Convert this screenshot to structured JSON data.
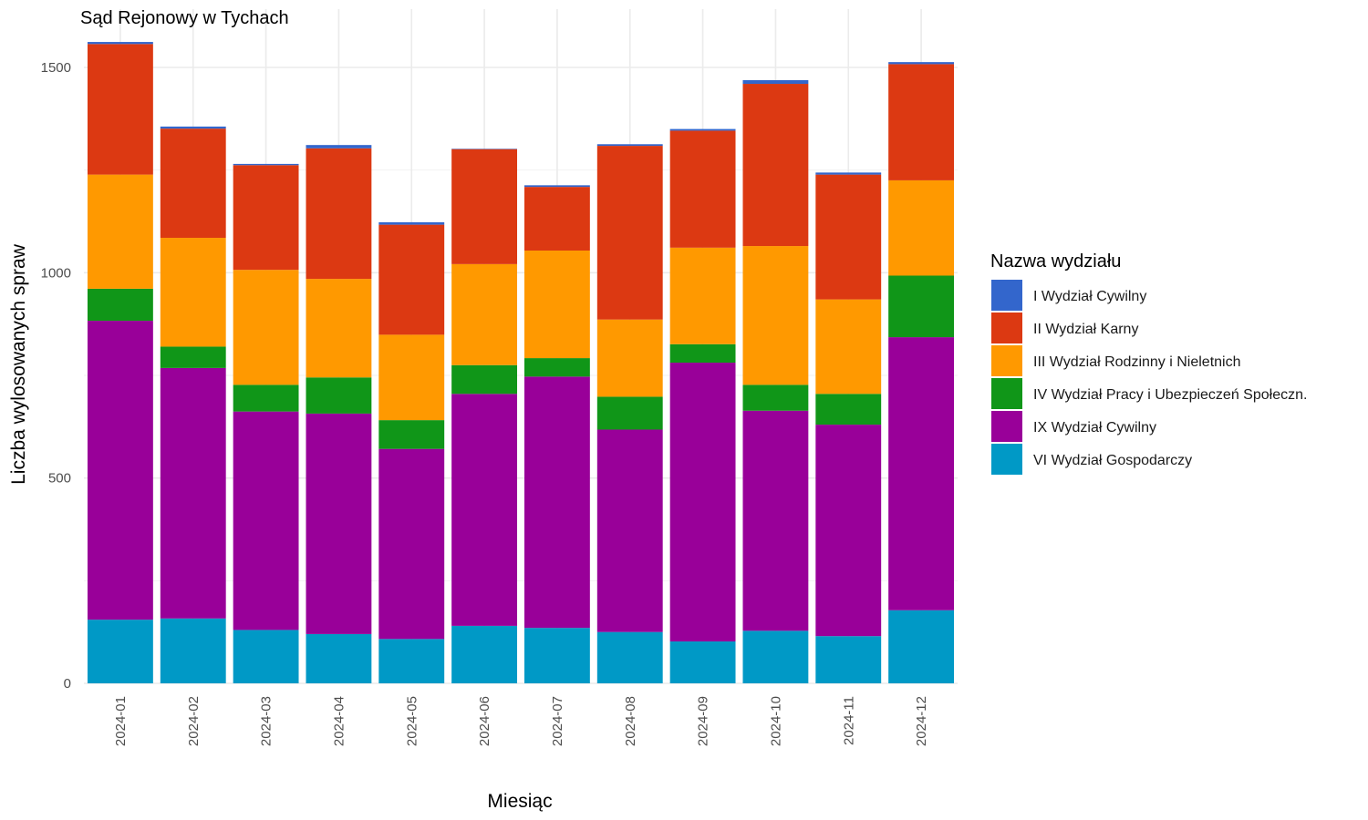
{
  "chart_data": {
    "type": "bar",
    "stacked": true,
    "title": "Sąd Rejonowy w Tychach",
    "xlabel": "Miesiąc",
    "ylabel": "Liczba wylosowanych spraw",
    "ylim": [
      0,
      1600
    ],
    "yticks": [
      0,
      500,
      1000,
      1500
    ],
    "grid": true,
    "legend_title": "Nazwa wydziału",
    "legend_position": "right",
    "categories": [
      "2024-01",
      "2024-02",
      "2024-03",
      "2024-04",
      "2024-05",
      "2024-06",
      "2024-07",
      "2024-08",
      "2024-09",
      "2024-10",
      "2024-11",
      "2024-12"
    ],
    "stack_order": [
      "VI Wydział Gospodarczy",
      "IX Wydział Cywilny",
      "IV Wydział Pracy i Ubezpieczeń Społeczn.",
      "III Wydział Rodzinny i Nieletnich",
      "II Wydział Karny",
      "I Wydział Cywilny"
    ],
    "series": [
      {
        "name": "I Wydział Cywilny",
        "color": "#3366CC",
        "values": [
          5,
          5,
          3,
          8,
          6,
          1,
          4,
          4,
          4,
          9,
          5,
          5
        ]
      },
      {
        "name": "II Wydział Karny",
        "color": "#DC3912",
        "values": [
          318,
          266,
          255,
          318,
          268,
          280,
          155,
          423,
          285,
          395,
          304,
          283
        ]
      },
      {
        "name": "III Wydział Rodzinny i Nieletnich",
        "color": "#FF9900",
        "values": [
          278,
          265,
          280,
          240,
          208,
          246,
          262,
          188,
          235,
          338,
          230,
          232
        ]
      },
      {
        "name": "IV Wydział Pracy i Ubezpieczeń Społeczn.",
        "color": "#109618",
        "values": [
          78,
          52,
          65,
          88,
          70,
          70,
          45,
          80,
          45,
          63,
          75,
          150
        ]
      },
      {
        "name": "IX Wydział Cywilny",
        "color": "#990099",
        "values": [
          728,
          610,
          532,
          537,
          463,
          565,
          612,
          493,
          679,
          536,
          515,
          665
        ]
      },
      {
        "name": "VI Wydział Gospodarczy",
        "color": "#0099C6",
        "values": [
          155,
          158,
          130,
          120,
          108,
          140,
          135,
          125,
          102,
          128,
          115,
          178
        ]
      }
    ]
  }
}
